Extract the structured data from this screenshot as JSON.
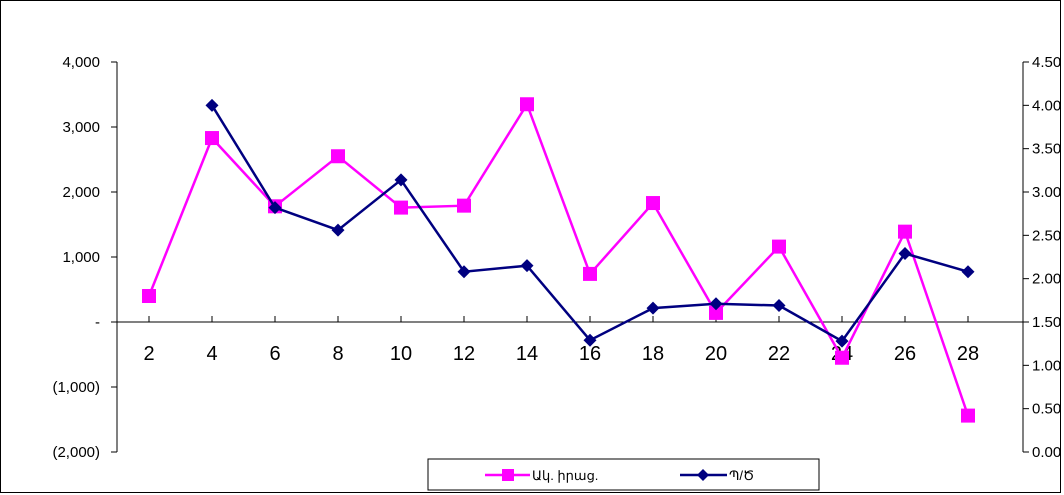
{
  "chart_data": {
    "type": "line",
    "title": "",
    "x": [
      2,
      4,
      6,
      8,
      10,
      12,
      14,
      16,
      18,
      20,
      22,
      24,
      26,
      28
    ],
    "x_tick_labels": [
      "2",
      "4",
      "6",
      "8",
      "10",
      "12",
      "14",
      "16",
      "18",
      "20",
      "22",
      "24",
      "26",
      "28"
    ],
    "y_left": {
      "ylim": [
        -2000,
        4000
      ],
      "tick_values": [
        4000,
        3000,
        2000,
        1000,
        0,
        -1000,
        -2000
      ],
      "tick_labels": [
        "4,000",
        "3,000",
        "2,000",
        "1,000",
        "-",
        "(1,000)",
        "(2,000)"
      ]
    },
    "y_right": {
      "ylim": [
        0,
        4.5
      ],
      "tick_values": [
        4.5,
        4.0,
        3.5,
        3.0,
        2.5,
        2.0,
        1.5,
        1.0,
        0.5,
        0.0
      ],
      "tick_labels": [
        "4.50",
        "4.00",
        "3.50",
        "3.00",
        "2.50",
        "2.00",
        "1.50",
        "1.00",
        "0.50",
        "0.00"
      ]
    },
    "x_axis_crosses_left_at": 0,
    "grid": false,
    "legend_position": "bottom",
    "series": [
      {
        "name": "Ակ. իրաց.",
        "axis": "left",
        "color": "#ff00ff",
        "marker": "square",
        "x": [
          2,
          4,
          6,
          8,
          10,
          12,
          14,
          16,
          18,
          20,
          22,
          24,
          26,
          28
        ],
        "values": [
          400,
          2830,
          1780,
          2550,
          1760,
          1790,
          3350,
          740,
          1830,
          140,
          1160,
          -550,
          1390,
          -1440
        ]
      },
      {
        "name": "Պ/Ծ",
        "axis": "right",
        "color": "#000080",
        "marker": "diamond",
        "x": [
          4,
          6,
          8,
          10,
          12,
          14,
          16,
          18,
          20,
          22,
          24,
          26,
          28
        ],
        "values": [
          4.0,
          2.82,
          2.56,
          3.14,
          2.08,
          2.15,
          1.29,
          1.66,
          1.71,
          1.69,
          1.28,
          2.29,
          2.08
        ]
      }
    ]
  }
}
